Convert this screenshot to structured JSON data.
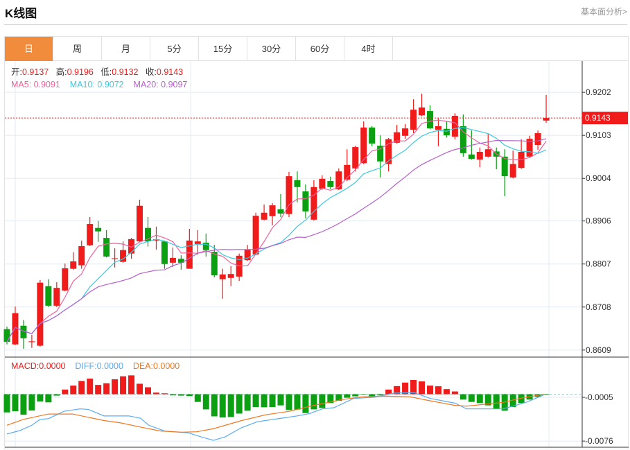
{
  "header": {
    "title": "K线图",
    "link": "基本面分析>"
  },
  "tabs": [
    "日",
    "周",
    "月",
    "5分",
    "15分",
    "30分",
    "60分",
    "4时"
  ],
  "active_tab": 0,
  "ohlc_info": {
    "open_label": "开:",
    "open": "0.9137",
    "high_label": "高:",
    "high": "0.9196",
    "low_label": "低:",
    "low": "0.9132",
    "close_label": "收:",
    "close": "0.9143"
  },
  "ma_info": {
    "ma5": "MA5: 0.9091",
    "ma10": "MA10: 0.9072",
    "ma20": "MA20: 0.9097"
  },
  "macd_info": {
    "macd": "MACD:0.0000",
    "diff": "DIFF:0.0000",
    "dea": "DEA:0.0000"
  },
  "colors": {
    "up": "#f01b1b",
    "down": "#0aa012",
    "ma5": "#f0609a",
    "ma10": "#3cc8e0",
    "ma20": "#b65fcf",
    "diff": "#5aabf0",
    "dea": "#f07820",
    "accent": "#f28c3d"
  },
  "chart_data": [
    {
      "type": "candlestick",
      "title": "K线图",
      "price_axis_ticks": [
        "0.9202",
        "0.9103",
        "0.9004",
        "0.8906",
        "0.8807",
        "0.8708",
        "0.8609"
      ],
      "ylim": [
        0.8596,
        0.9274
      ],
      "current_price": "0.9143",
      "candles": [
        [
          0.8657,
          0.8663,
          0.8622,
          0.8628
        ],
        [
          0.8622,
          0.8709,
          0.862,
          0.8694
        ],
        [
          0.8665,
          0.8678,
          0.8612,
          0.8636
        ],
        [
          0.8628,
          0.8644,
          0.8614,
          0.8629
        ],
        [
          0.8619,
          0.877,
          0.8617,
          0.8764
        ],
        [
          0.8756,
          0.8772,
          0.8708,
          0.8711
        ],
        [
          0.8711,
          0.8765,
          0.8708,
          0.8752
        ],
        [
          0.8746,
          0.8808,
          0.8744,
          0.8797
        ],
        [
          0.8796,
          0.8834,
          0.8794,
          0.8813
        ],
        [
          0.8804,
          0.8861,
          0.8796,
          0.8848
        ],
        [
          0.885,
          0.8915,
          0.8848,
          0.8899
        ],
        [
          0.889,
          0.8906,
          0.8858,
          0.8882
        ],
        [
          0.8867,
          0.8885,
          0.8822,
          0.8824
        ],
        [
          0.8819,
          0.8843,
          0.8799,
          0.882
        ],
        [
          0.8812,
          0.8859,
          0.881,
          0.8839
        ],
        [
          0.8831,
          0.8867,
          0.8819,
          0.8864
        ],
        [
          0.8859,
          0.8955,
          0.8857,
          0.8941
        ],
        [
          0.889,
          0.8915,
          0.8847,
          0.8859
        ],
        [
          0.8861,
          0.8893,
          0.884,
          0.8864
        ],
        [
          0.8859,
          0.8861,
          0.8796,
          0.8807
        ],
        [
          0.881,
          0.8845,
          0.88,
          0.8821
        ],
        [
          0.8819,
          0.8827,
          0.8794,
          0.881
        ],
        [
          0.8796,
          0.8888,
          0.8796,
          0.8861
        ],
        [
          0.8853,
          0.8885,
          0.8829,
          0.8859
        ],
        [
          0.8856,
          0.8877,
          0.8824,
          0.8839
        ],
        [
          0.8835,
          0.8851,
          0.8776,
          0.8781
        ],
        [
          0.8772,
          0.8796,
          0.8727,
          0.8783
        ],
        [
          0.8775,
          0.8802,
          0.8756,
          0.8784
        ],
        [
          0.8778,
          0.8831,
          0.8768,
          0.8826
        ],
        [
          0.8816,
          0.8851,
          0.8814,
          0.884
        ],
        [
          0.8829,
          0.8925,
          0.8827,
          0.8918
        ],
        [
          0.8909,
          0.8944,
          0.8907,
          0.8925
        ],
        [
          0.8917,
          0.8947,
          0.8896,
          0.8942
        ],
        [
          0.8933,
          0.8968,
          0.8915,
          0.8923
        ],
        [
          0.8922,
          0.9019,
          0.8915,
          0.9009
        ],
        [
          0.9,
          0.902,
          0.8949,
          0.8984
        ],
        [
          0.8974,
          0.899,
          0.8912,
          0.8928
        ],
        [
          0.8909,
          0.9,
          0.8907,
          0.8984
        ],
        [
          0.898,
          0.9011,
          0.8978,
          0.9003
        ],
        [
          0.8998,
          0.9008,
          0.8979,
          0.8984
        ],
        [
          0.8979,
          0.9027,
          0.8977,
          0.902
        ],
        [
          0.9001,
          0.9071,
          0.8998,
          0.9035
        ],
        [
          0.9027,
          0.9079,
          0.902,
          0.9076
        ],
        [
          0.9039,
          0.9135,
          0.9037,
          0.9121
        ],
        [
          0.9121,
          0.9124,
          0.9078,
          0.9084
        ],
        [
          0.9079,
          0.9103,
          0.9006,
          0.9043
        ],
        [
          0.9037,
          0.9097,
          0.902,
          0.9094
        ],
        [
          0.9086,
          0.9127,
          0.9084,
          0.911
        ],
        [
          0.9102,
          0.9129,
          0.9095,
          0.9119
        ],
        [
          0.9116,
          0.9186,
          0.9108,
          0.9162
        ],
        [
          0.9149,
          0.9199,
          0.9147,
          0.9167
        ],
        [
          0.9159,
          0.9172,
          0.9117,
          0.9119
        ],
        [
          0.9116,
          0.9143,
          0.9078,
          0.9124
        ],
        [
          0.9118,
          0.9135,
          0.9098,
          0.9103
        ],
        [
          0.91,
          0.9154,
          0.9094,
          0.9148
        ],
        [
          0.9124,
          0.9151,
          0.9054,
          0.9062
        ],
        [
          0.9059,
          0.9114,
          0.9047,
          0.9049
        ],
        [
          0.9047,
          0.9075,
          0.903,
          0.9065
        ],
        [
          0.9054,
          0.9106,
          0.9052,
          0.9071
        ],
        [
          0.9066,
          0.9075,
          0.9025,
          0.9054
        ],
        [
          0.9054,
          0.9071,
          0.8963,
          0.9009
        ],
        [
          0.9006,
          0.9068,
          0.9004,
          0.9037
        ],
        [
          0.9028,
          0.9094,
          0.9026,
          0.9065
        ],
        [
          0.9054,
          0.9102,
          0.9052,
          0.9095
        ],
        [
          0.9081,
          0.9114,
          0.907,
          0.9108
        ],
        [
          0.9137,
          0.9196,
          0.9132,
          0.9143
        ]
      ],
      "candle_format": [
        "open",
        "high",
        "low",
        "close"
      ]
    },
    {
      "type": "macd",
      "axis_ticks": [
        "-0.0005",
        "-0.0076"
      ],
      "ylim": [
        -0.0086,
        0.0058
      ],
      "histogram": [
        -0.00295,
        -0.00276,
        -0.00333,
        -0.00265,
        -0.00117,
        -0.00132,
        -0.00023,
        0.00076,
        0.0014,
        0.00215,
        0.00253,
        0.00151,
        0.00178,
        0.00242,
        0.00291,
        0.00306,
        0.0017,
        0.00113,
        0.00026,
        0.00015,
        -0.00019,
        -0.00023,
        -0.0003,
        -0.00125,
        -0.00246,
        -0.00359,
        -0.00378,
        -0.0037,
        -0.00314,
        -0.00268,
        -0.00208,
        -0.00212,
        -0.00208,
        -0.00181,
        -0.00257,
        -0.00249,
        -0.00306,
        -0.00246,
        -0.00223,
        -0.00144,
        -0.00106,
        -0.00057,
        -0.00034,
        -2e-05,
        -0.00034,
        -0.00019,
        0.00076,
        0.00132,
        0.00189,
        0.00231,
        0.00208,
        0.0014,
        0.00129,
        0.00083,
        0.00045,
        -0.00087,
        -0.00125,
        -0.00144,
        -0.00181,
        -0.00238,
        -0.00268,
        -0.00208,
        -0.00144,
        -0.00087,
        -0.00042,
        -0.00011
      ],
      "diff": [
        [
          0,
          -0.00646
        ],
        [
          1.55,
          -0.0059
        ],
        [
          3,
          -0.00503
        ],
        [
          4,
          -0.00408
        ],
        [
          5,
          -0.00397
        ],
        [
          6.9,
          -0.00276
        ],
        [
          8.8,
          -0.00238
        ],
        [
          9.8,
          -0.00246
        ],
        [
          11.7,
          -0.00352
        ],
        [
          14.7,
          -0.00352
        ],
        [
          16.1,
          -0.00389
        ],
        [
          17.1,
          -0.00503
        ],
        [
          19,
          -0.00597
        ],
        [
          21.9,
          -0.00627
        ],
        [
          23.4,
          -0.00692
        ],
        [
          24.9,
          -0.00748
        ],
        [
          26.3,
          -0.00692
        ],
        [
          28.3,
          -0.00541
        ],
        [
          30.2,
          -0.00446
        ],
        [
          33.1,
          -0.00389
        ],
        [
          35,
          -0.00352
        ],
        [
          36.5,
          -0.00314
        ],
        [
          38,
          -0.00238
        ],
        [
          39.4,
          -0.00219
        ],
        [
          41.8,
          -0.00068
        ],
        [
          44.3,
          -0.00049
        ],
        [
          46.7,
          0.00019
        ],
        [
          49.1,
          0.00026
        ],
        [
          51,
          -0.00068
        ],
        [
          54,
          -0.00144
        ],
        [
          55.4,
          -0.00238
        ],
        [
          59.8,
          -0.00238
        ],
        [
          61.3,
          -0.00181
        ],
        [
          62.7,
          -0.00125
        ],
        [
          64.7,
          -0.00011
        ]
      ],
      "dea": [
        [
          0,
          -0.00503
        ],
        [
          2,
          -0.00408
        ],
        [
          5,
          -0.00321
        ],
        [
          7.9,
          -0.00321
        ],
        [
          11.7,
          -0.00427
        ],
        [
          13.7,
          -0.00465
        ],
        [
          16.1,
          -0.00533
        ],
        [
          18.5,
          -0.00597
        ],
        [
          21,
          -0.00616
        ],
        [
          22.9,
          -0.00609
        ],
        [
          24.9,
          -0.00559
        ],
        [
          28.3,
          -0.00427
        ],
        [
          31.2,
          -0.00333
        ],
        [
          34.1,
          -0.00276
        ],
        [
          37,
          -0.00181
        ],
        [
          40.4,
          -0.00087
        ],
        [
          42.8,
          -0.00042
        ],
        [
          45.7,
          -0.0003
        ],
        [
          48.6,
          -0.00042
        ],
        [
          51,
          -0.00106
        ],
        [
          54,
          -0.00181
        ],
        [
          55.4,
          -0.00193
        ],
        [
          59.8,
          -0.00132
        ],
        [
          62.2,
          -0.00057
        ],
        [
          64.7,
          -4e-05
        ]
      ]
    }
  ]
}
